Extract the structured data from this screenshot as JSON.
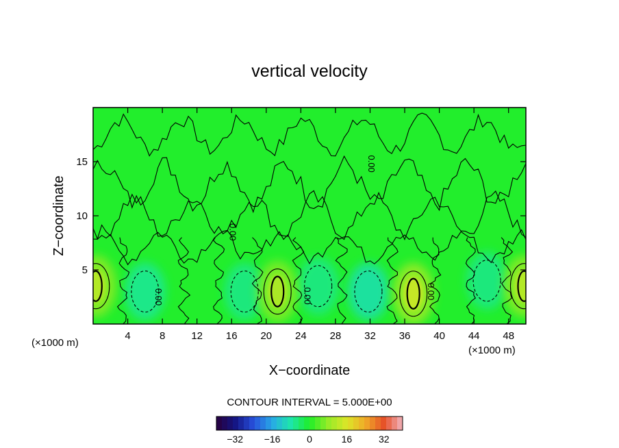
{
  "chart_data": {
    "type": "heatmap",
    "title": "vertical velocity",
    "xlabel": "X−coordinate",
    "ylabel": "Z−coordinate",
    "x_unit": "(×1000 m)",
    "z_unit": "(×1000 m)",
    "xlim": [
      0,
      50
    ],
    "ylim": [
      0,
      20
    ],
    "x_ticks": [
      4,
      8,
      12,
      16,
      20,
      24,
      28,
      32,
      36,
      40,
      44,
      48
    ],
    "y_ticks": [
      5,
      10,
      15
    ],
    "contour_interval_text": "CONTOUR INTERVAL = 5.000E+00",
    "contour_labels": [
      {
        "text": "0.00",
        "x": 15.8,
        "z": 8.5
      },
      {
        "text": "0.00",
        "x": 31.8,
        "z": 14.8
      },
      {
        "text": "0.00",
        "x": 7.2,
        "z": 2.5
      },
      {
        "text": "0.00",
        "x": 24.4,
        "z": 2.6
      },
      {
        "text": "0.00",
        "x": 38.7,
        "z": 3.0
      }
    ],
    "updrafts": [
      {
        "x": 0.3,
        "z": 3.5,
        "w": 12
      },
      {
        "x": 21.3,
        "z": 3.0,
        "w": 11
      },
      {
        "x": 37.0,
        "z": 2.8,
        "w": 14
      },
      {
        "x": 49.8,
        "z": 3.5,
        "w": 12
      }
    ],
    "downdrafts": [
      {
        "x": 6.0,
        "z": 3.0,
        "w": -7
      },
      {
        "x": 17.5,
        "z": 3.0,
        "w": -6
      },
      {
        "x": 26.0,
        "z": 3.5,
        "w": -6
      },
      {
        "x": 31.8,
        "z": 3.0,
        "w": -9
      },
      {
        "x": 45.5,
        "z": 4.0,
        "w": -6
      }
    ],
    "colorbar": {
      "min": -40,
      "max": 40,
      "ticks": [
        -32,
        -16,
        0,
        16,
        32
      ],
      "tick_labels": [
        "−32",
        "−16",
        "0",
        "16",
        "32"
      ]
    }
  }
}
